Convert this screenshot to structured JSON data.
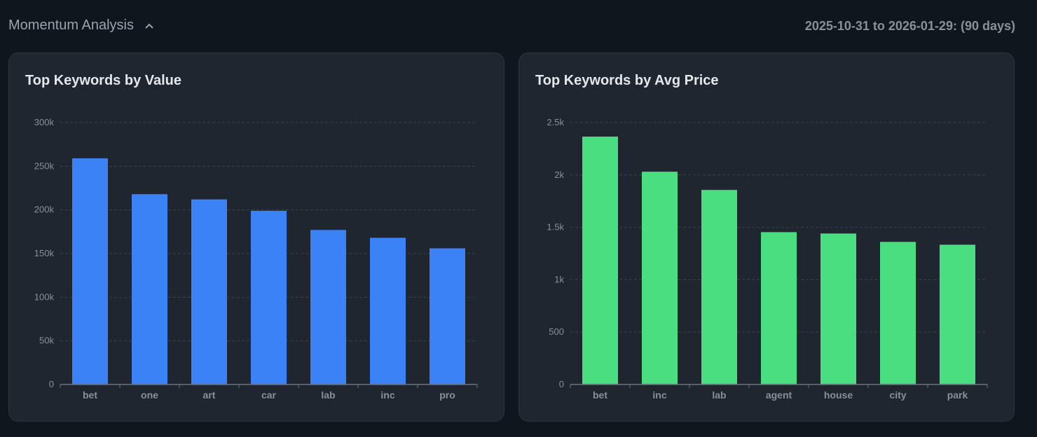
{
  "header": {
    "title": "Momentum Analysis",
    "date_range": "2025-10-31 to 2026-01-29: (90 days)"
  },
  "chart_data": [
    {
      "type": "bar",
      "title": "Top Keywords by Value",
      "categories": [
        "bet",
        "one",
        "art",
        "car",
        "lab",
        "inc",
        "pro"
      ],
      "values": [
        259000,
        218000,
        212000,
        199000,
        177000,
        168000,
        156000
      ],
      "ylim": [
        0,
        300000
      ],
      "yticks": [
        0,
        50000,
        100000,
        150000,
        200000,
        250000,
        300000
      ],
      "ytick_labels": [
        "0",
        "50k",
        "100k",
        "150k",
        "200k",
        "250k",
        "300k"
      ],
      "color": "#3b82f6",
      "grid": true
    },
    {
      "type": "bar",
      "title": "Top Keywords by Avg Price",
      "categories": [
        "bet",
        "inc",
        "lab",
        "agent",
        "house",
        "city",
        "park"
      ],
      "values": [
        2366,
        2031,
        1857,
        1454,
        1441,
        1361,
        1334
      ],
      "ylim": [
        0,
        2500
      ],
      "yticks": [
        0,
        500,
        1000,
        1500,
        2000,
        2500
      ],
      "ytick_labels": [
        "0",
        "500",
        "1k",
        "1.5k",
        "2k",
        "2.5k"
      ],
      "color": "#4ade80",
      "grid": true
    }
  ]
}
